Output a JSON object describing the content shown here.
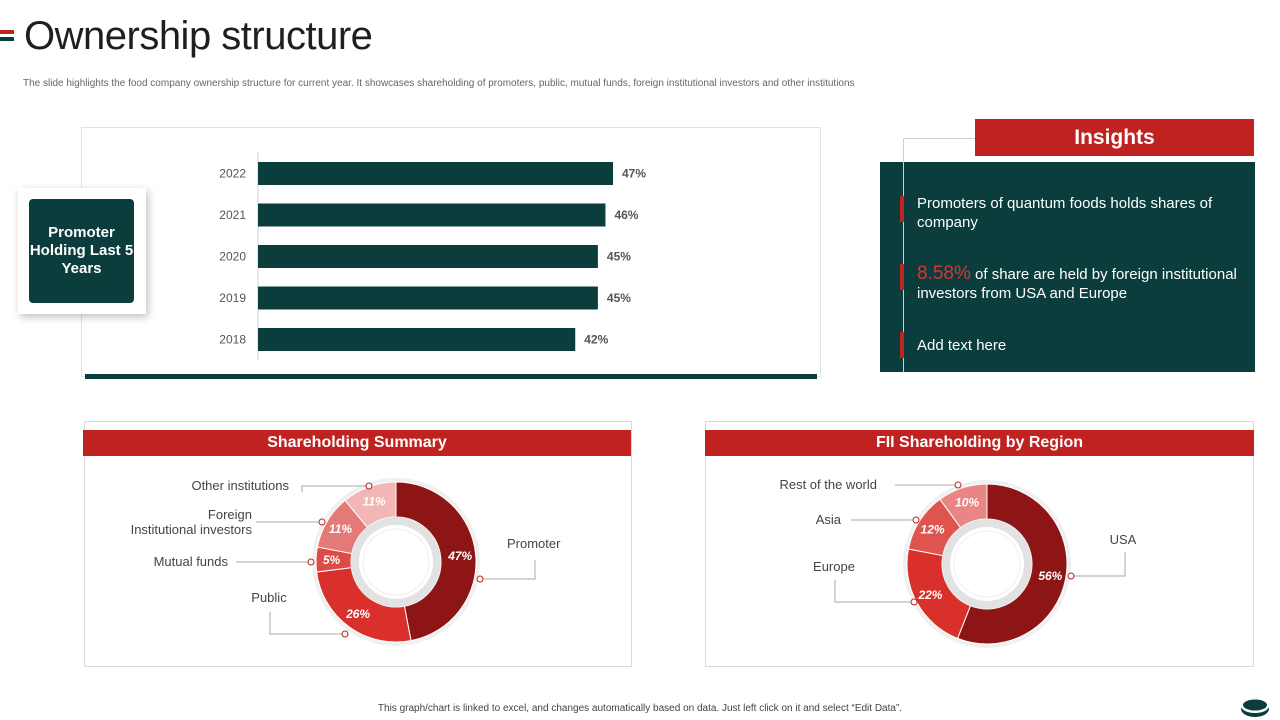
{
  "page": {
    "title": "Ownership structure",
    "subtitle": "The slide highlights the food company ownership structure for current year. It showcases shareholding of promoters, public, mutual funds, foreign institutional investors and other institutions",
    "footer": "This graph/chart is linked to excel, and changes automatically based on data. Just left click on it and select “Edit Data”."
  },
  "promoter_card": {
    "label": "Promoter Holding Last 5 Years"
  },
  "insights": {
    "title": "Insights",
    "item1": "Promoters of quantum foods holds shares of company",
    "item2_highlight": "8.58%",
    "item2_rest": " of share are held by foreign institutional investors from USA and Europe",
    "item3": "Add text here"
  },
  "colors": {
    "teal": "#0b3d3d",
    "red": "#c0221f",
    "dark_red": "#8e1516",
    "bright_red": "#d9302b",
    "mid_red": "#e06a6a",
    "pink": "#f2b6b6"
  },
  "chart_data": [
    {
      "type": "bar",
      "orientation": "horizontal",
      "title": "Promoter Holding Last 5 Years",
      "categories": [
        "2022",
        "2021",
        "2020",
        "2019",
        "2018"
      ],
      "values": [
        47,
        46,
        45,
        45,
        42
      ],
      "labels": [
        "47%",
        "46%",
        "45%",
        "45%",
        "42%"
      ],
      "unit": "%"
    },
    {
      "type": "pie",
      "title": "Shareholding Summary",
      "slices": [
        {
          "name": "Promoter",
          "value": 47,
          "label": "47%",
          "color": "#8e1516"
        },
        {
          "name": "Public",
          "value": 26,
          "label": "26%",
          "color": "#d9302b"
        },
        {
          "name": "Mutual funds",
          "value": 5,
          "label": "5%",
          "color": "#dc4b45"
        },
        {
          "name": "Foreign Institutional investors",
          "value": 11,
          "label": "11%",
          "color": "#e47a78"
        },
        {
          "name": "Other institutions",
          "value": 11,
          "label": "11%",
          "color": "#f2b6b6"
        }
      ]
    },
    {
      "type": "pie",
      "title": "FII Shareholding by Region",
      "slices": [
        {
          "name": "USA",
          "value": 56,
          "label": "56%",
          "color": "#8e1516"
        },
        {
          "name": "Europe",
          "value": 22,
          "label": "22%",
          "color": "#d9302b"
        },
        {
          "name": "Asia",
          "value": 12,
          "label": "12%",
          "color": "#e05450"
        },
        {
          "name": "Rest of the world",
          "value": 10,
          "label": "10%",
          "color": "#e98585"
        }
      ]
    }
  ]
}
